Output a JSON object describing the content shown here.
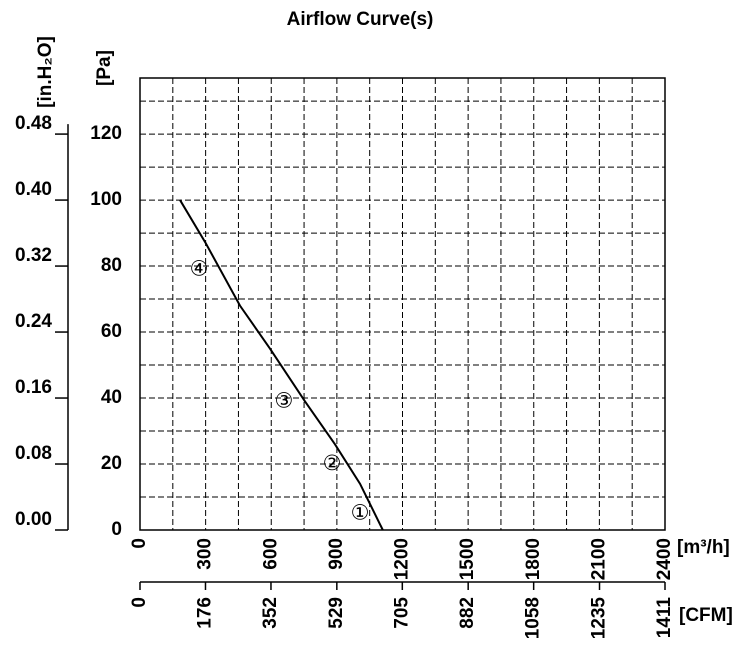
{
  "chart_data": {
    "type": "line",
    "title": "Airflow Curve(s)",
    "xlabel": "[m³/h]",
    "x2label": "[CFM]",
    "ylabel": "[Pa]",
    "y2label": "[in.H₂O]",
    "series": [
      {
        "x": [
          183,
          300,
          457,
          594,
          754,
          891,
          1006,
          1110
        ],
        "values": [
          100,
          87,
          68,
          55,
          39,
          26,
          14,
          0
        ],
        "color": "#000000"
      }
    ],
    "xlim": [
      0,
      2400
    ],
    "xticks": [
      0,
      300,
      600,
      900,
      1200,
      1500,
      1800,
      2100,
      2400
    ],
    "xminor": [
      150,
      450,
      750,
      1050,
      1350,
      1650,
      1950,
      2250
    ],
    "x2lim": [
      0,
      1411
    ],
    "x2ticks": [
      0,
      176,
      352,
      529,
      705,
      882,
      1058,
      1235,
      1411
    ],
    "ylim": [
      0,
      137
    ],
    "yticks": [
      0,
      20,
      40,
      60,
      80,
      100,
      120
    ],
    "yminor": [
      10,
      30,
      50,
      70,
      90,
      110,
      130
    ],
    "y2lim": [
      0,
      0.548
    ],
    "y2ticks": [
      {
        "value": 0,
        "label": "0.00"
      },
      {
        "value": 0.08,
        "label": "0.08"
      },
      {
        "value": 0.16,
        "label": "0.16"
      },
      {
        "value": 0.24,
        "label": "0.24"
      },
      {
        "value": 0.32,
        "label": "0.32"
      },
      {
        "value": 0.4,
        "label": "0.40"
      },
      {
        "value": 0.48,
        "label": "0.48"
      }
    ],
    "annotations": [
      {
        "text": "①",
        "x": 1006,
        "y": 5
      },
      {
        "text": "②",
        "x": 878,
        "y": 20
      },
      {
        "text": "③",
        "x": 658,
        "y": 39
      },
      {
        "text": "④",
        "x": 270,
        "y": 79
      }
    ],
    "grid": true
  }
}
